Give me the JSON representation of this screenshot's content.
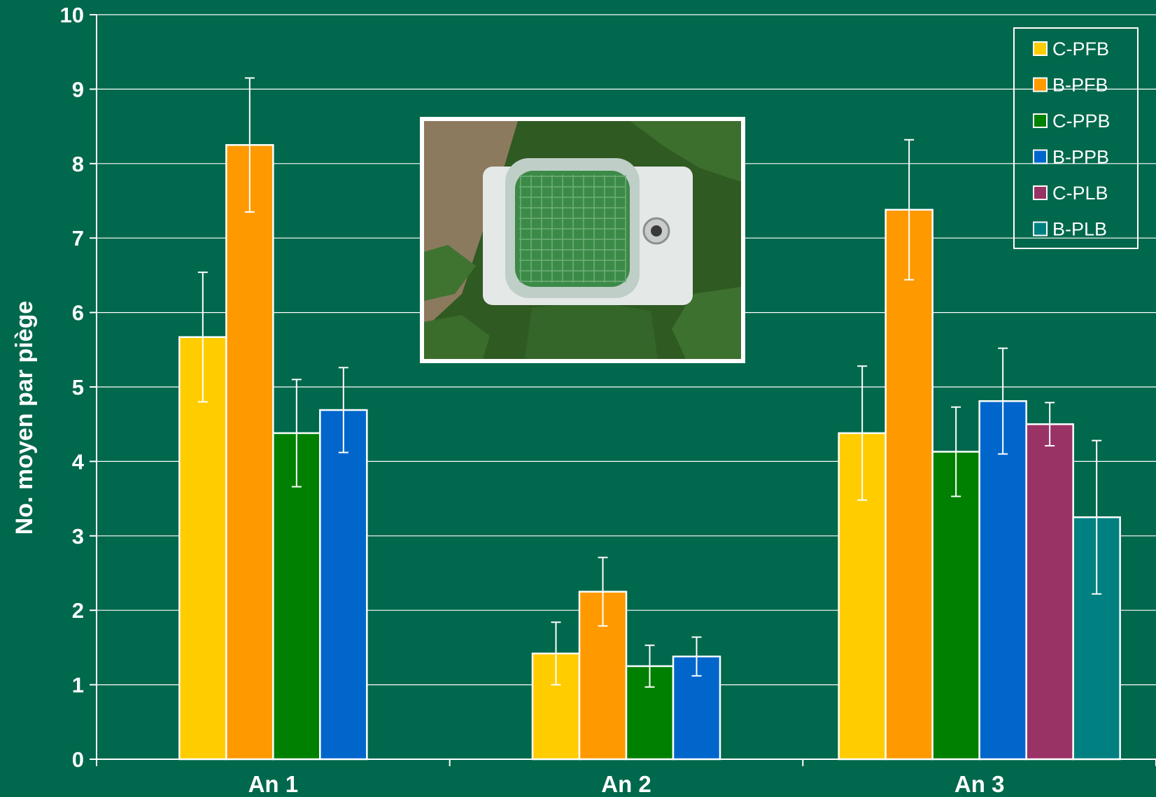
{
  "chart_data": {
    "type": "bar",
    "title": "",
    "xlabel": "",
    "ylabel": "No. moyen par piège",
    "ylim": [
      0,
      10
    ],
    "yticks": [
      "0",
      "1",
      "2",
      "3",
      "4",
      "5",
      "6",
      "7",
      "8",
      "9",
      "10"
    ],
    "grid": true,
    "legend_position": "top-right",
    "categories": [
      "An 1",
      "An 2",
      "An 3"
    ],
    "series": [
      {
        "name": "C-PFB",
        "color": "#ffcc00",
        "values": [
          5.67,
          1.42,
          4.38
        ],
        "errors": [
          0.87,
          0.42,
          0.9
        ]
      },
      {
        "name": "B-PFB",
        "color": "#ff9900",
        "values": [
          8.25,
          2.25,
          7.38
        ],
        "errors": [
          0.9,
          0.46,
          0.94
        ]
      },
      {
        "name": "C-PPB",
        "color": "#008000",
        "values": [
          4.38,
          1.25,
          4.13
        ],
        "errors": [
          0.72,
          0.28,
          0.6
        ]
      },
      {
        "name": "B-PPB",
        "color": "#0066cc",
        "values": [
          4.69,
          1.38,
          4.81
        ],
        "errors": [
          0.57,
          0.26,
          0.71
        ]
      },
      {
        "name": "C-PLB",
        "color": "#993366",
        "values": [
          null,
          null,
          4.5
        ],
        "errors": [
          null,
          null,
          0.29
        ]
      },
      {
        "name": "B-PLB",
        "color": "#008080",
        "values": [
          null,
          null,
          3.25
        ],
        "errors": [
          null,
          null,
          1.03
        ]
      }
    ]
  },
  "inset_photo": {
    "subject": "trap-on-potato-plants",
    "colors": {
      "soil": "#8c7a5e",
      "foliage": "#2f5a22",
      "trap": "#e4e8e6",
      "lid": "#3c8a48"
    }
  }
}
